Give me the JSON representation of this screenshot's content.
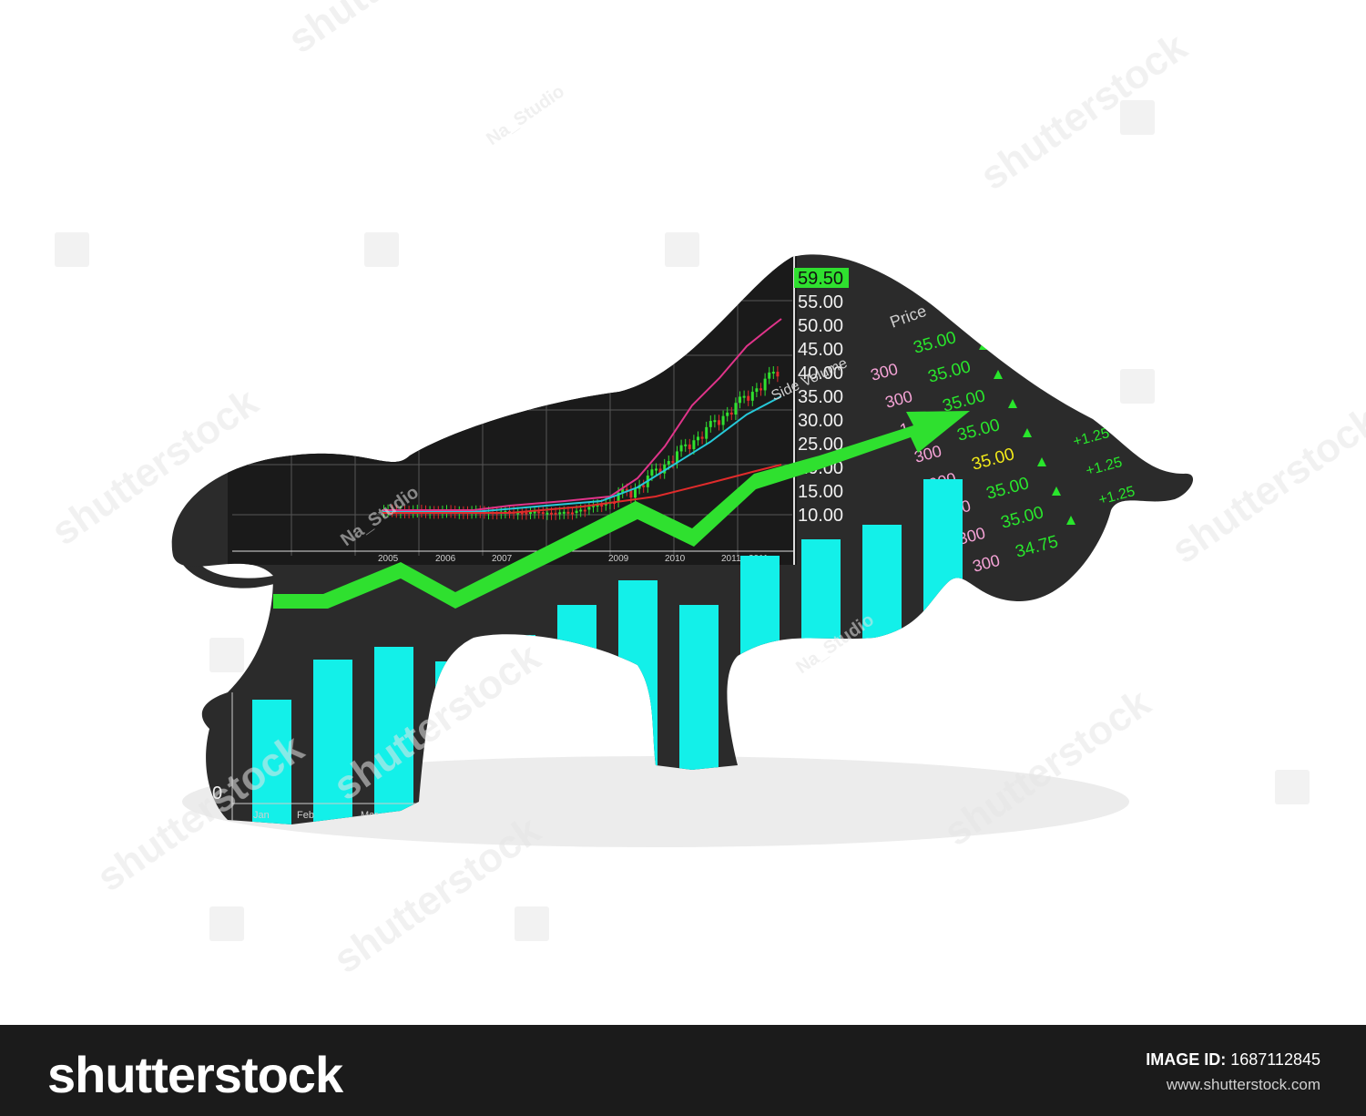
{
  "illustration": {
    "candle_axis_labels": [
      "59.50",
      "55.00",
      "50.00",
      "45.00",
      "40.00",
      "35.00",
      "30.00",
      "25.00",
      "20.00",
      "15.00",
      "10.00"
    ],
    "year_labels": [
      "2005",
      "2006",
      "2007",
      "2009",
      "2010",
      "2011",
      "2011"
    ],
    "month_labels": [
      "Jan",
      "Feb",
      "Mar"
    ],
    "bar_axis_zero": "0",
    "ticker": {
      "header": "Price",
      "volume_label": "Side Volume",
      "prices": [
        "35.00",
        "35.00",
        "35.00",
        "35.00",
        "35.00",
        "35.00",
        "35.00",
        "34.75"
      ],
      "volumes": [
        "300",
        "300",
        "1,900",
        "300",
        "900",
        "300",
        "300",
        "300"
      ],
      "changes": [
        "+1.25",
        "+1.25",
        "+1.25"
      ]
    },
    "colors": {
      "bull": "#2b2b2b",
      "bars": "#13f0e9",
      "trend_arrow": "#2fe02f",
      "ticker_green": "#29e62c",
      "ticker_yellow": "#f2ea19",
      "ticker_pink": "#f5a3d6"
    }
  },
  "watermark": {
    "text": "shutterstock",
    "author": "Na_Studio"
  },
  "footer": {
    "logo": "shutterstock",
    "image_id_label": "IMAGE ID:",
    "image_id": "1687112845",
    "url": "www.shutterstock.com"
  }
}
